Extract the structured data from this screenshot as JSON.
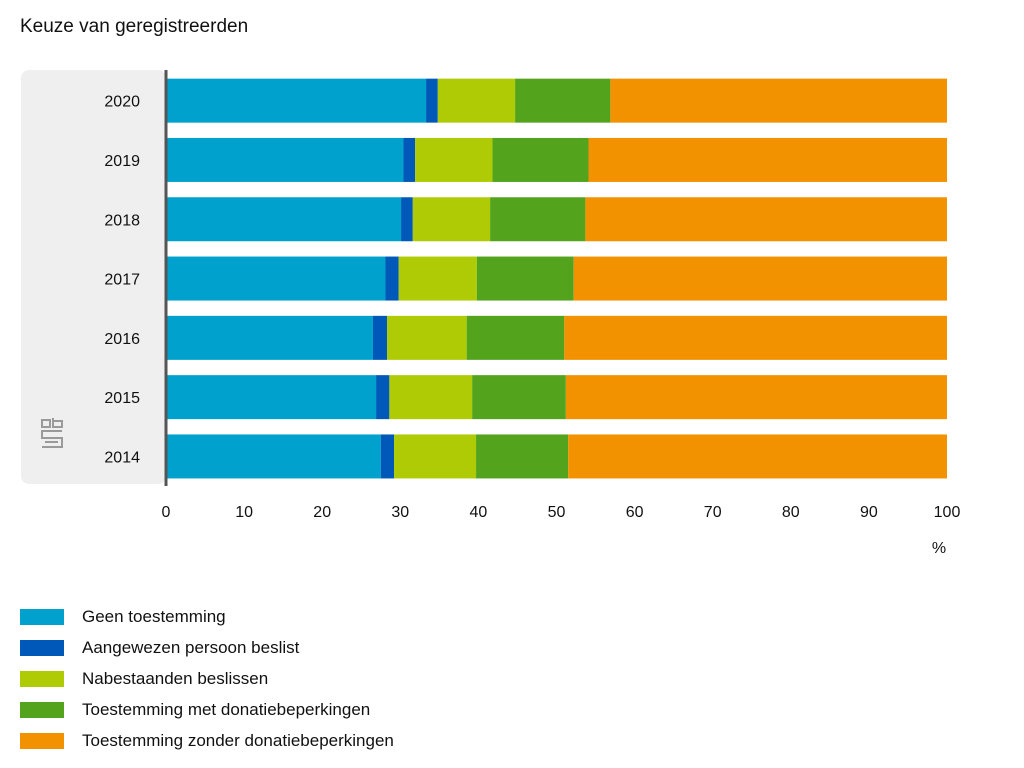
{
  "chart_data": {
    "type": "bar",
    "orientation": "horizontal",
    "stacked": true,
    "title": "Keuze van geregistreerden",
    "categories": [
      "2020",
      "2019",
      "2018",
      "2017",
      "2016",
      "2015",
      "2014"
    ],
    "unit_label": "%",
    "xlim": [
      0,
      100
    ],
    "x_ticks": [
      0,
      10,
      20,
      30,
      40,
      50,
      60,
      70,
      80,
      90,
      100
    ],
    "legend_position": "bottom-left",
    "grid": false,
    "series": [
      {
        "name": "Geen toestemming",
        "color": "#00A1CD",
        "values": [
          33.3,
          30.4,
          30.1,
          28.1,
          26.5,
          26.9,
          27.5
        ]
      },
      {
        "name": "Aangewezen persoon beslist",
        "color": "#0058B8",
        "values": [
          1.5,
          1.5,
          1.5,
          1.7,
          1.8,
          1.7,
          1.7
        ]
      },
      {
        "name": "Nabestaanden beslissen",
        "color": "#AFCB05",
        "values": [
          9.9,
          9.9,
          9.9,
          10.0,
          10.2,
          10.6,
          10.5
        ]
      },
      {
        "name": "Toestemming met donatiebeperkingen",
        "color": "#53A31D",
        "values": [
          12.2,
          12.3,
          12.2,
          12.4,
          12.5,
          12.0,
          11.8
        ]
      },
      {
        "name": "Toestemming zonder donatiebeperkingen",
        "color": "#F39200",
        "values": [
          43.1,
          45.9,
          46.3,
          47.8,
          49.0,
          48.8,
          48.5
        ]
      }
    ]
  },
  "panel_color": "#EFEFEF",
  "logo_name": "cbs-logo"
}
